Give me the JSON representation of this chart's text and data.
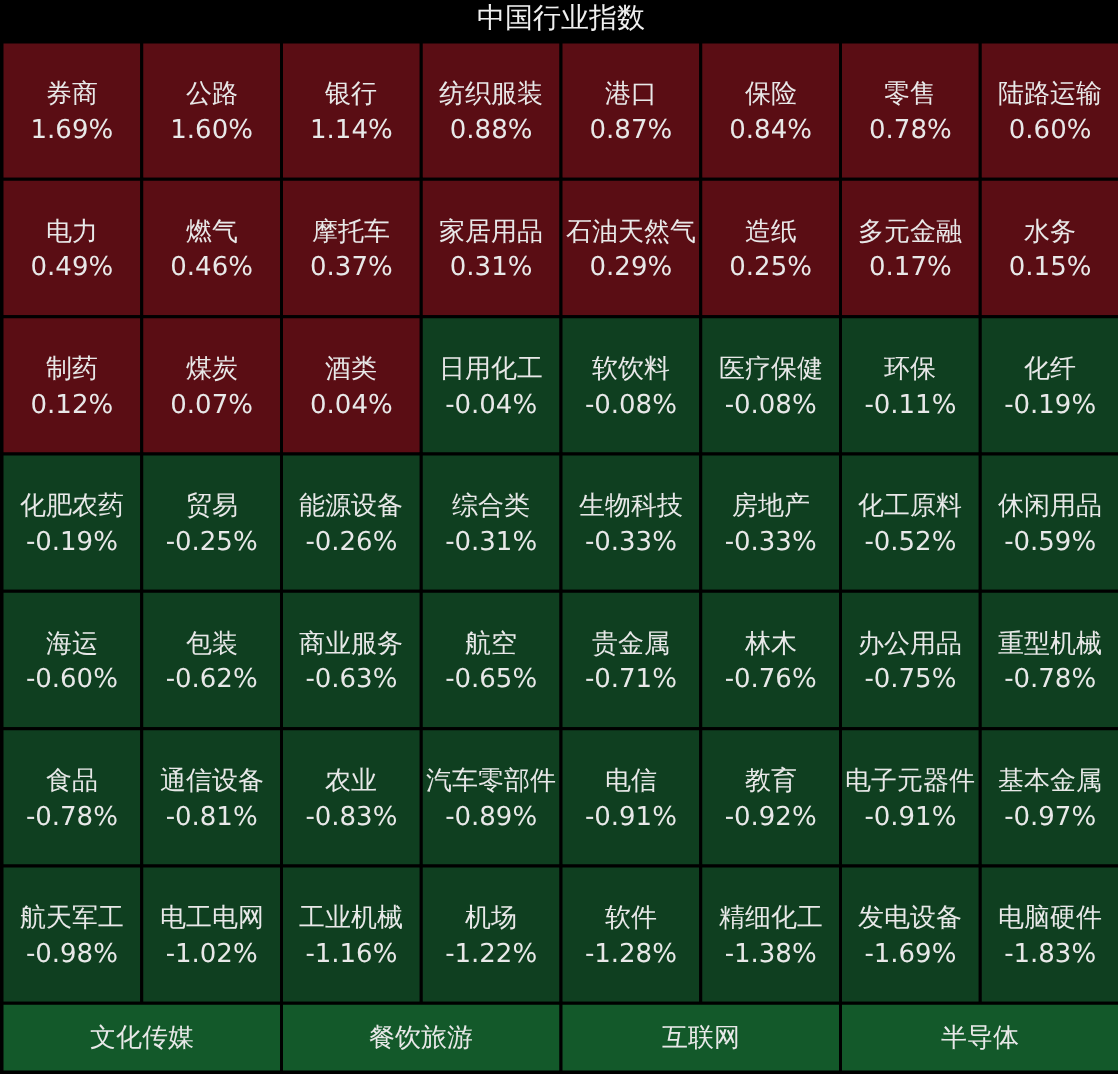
{
  "chart_data": {
    "type": "other",
    "title": "中国行业指数",
    "categories": [
      "券商",
      "公路",
      "银行",
      "纺织服装",
      "港口",
      "保险",
      "零售",
      "陆路运输",
      "电力",
      "燃气",
      "摩托车",
      "家居用品",
      "石油天然气",
      "造纸",
      "多元金融",
      "水务",
      "制药",
      "煤炭",
      "酒类",
      "日用化工",
      "软饮料",
      "医疗保健",
      "环保",
      "化纤",
      "化肥农药",
      "贸易",
      "能源设备",
      "综合类",
      "生物科技",
      "房地产",
      "化工原料",
      "休闲用品",
      "海运",
      "包装",
      "商业服务",
      "航空",
      "贵金属",
      "林木",
      "办公用品",
      "重型机械",
      "食品",
      "通信设备",
      "农业",
      "汽车零部件",
      "电信",
      "教育",
      "电子元器件",
      "基本金属",
      "航天军工",
      "电工电网",
      "工业机械",
      "机场",
      "软件",
      "精细化工",
      "发电设备",
      "电脑硬件",
      "文化传媒",
      "餐饮旅游",
      "互联网",
      "半导体"
    ],
    "values": [
      1.69,
      1.6,
      1.14,
      0.88,
      0.87,
      0.84,
      0.78,
      0.6,
      0.49,
      0.46,
      0.37,
      0.31,
      0.29,
      0.25,
      0.17,
      0.15,
      0.12,
      0.07,
      0.04,
      -0.04,
      -0.08,
      -0.08,
      -0.11,
      -0.19,
      -0.19,
      -0.25,
      -0.26,
      -0.31,
      -0.33,
      -0.33,
      -0.52,
      -0.59,
      -0.6,
      -0.62,
      -0.63,
      -0.65,
      -0.71,
      -0.76,
      -0.75,
      -0.78,
      -0.78,
      -0.81,
      -0.83,
      -0.89,
      -0.91,
      -0.92,
      -0.91,
      -0.97,
      -0.98,
      -1.02,
      -1.16,
      -1.22,
      -1.28,
      -1.38,
      -1.69,
      -1.83,
      null,
      null,
      null,
      null
    ],
    "value_labels": [
      "1.69%",
      "1.60%",
      "1.14%",
      "0.88%",
      "0.87%",
      "0.84%",
      "0.78%",
      "0.60%",
      "0.49%",
      "0.46%",
      "0.37%",
      "0.31%",
      "0.29%",
      "0.25%",
      "0.17%",
      "0.15%",
      "0.12%",
      "0.07%",
      "0.04%",
      "-0.04%",
      "-0.08%",
      "-0.08%",
      "-0.11%",
      "-0.19%",
      "-0.19%",
      "-0.25%",
      "-0.26%",
      "-0.31%",
      "-0.33%",
      "-0.33%",
      "-0.52%",
      "-0.59%",
      "-0.60%",
      "-0.62%",
      "-0.63%",
      "-0.65%",
      "-0.71%",
      "-0.76%",
      "-0.75%",
      "-0.78%",
      "-0.78%",
      "-0.81%",
      "-0.83%",
      "-0.89%",
      "-0.91%",
      "-0.92%",
      "-0.91%",
      "-0.97%",
      "-0.98%",
      "-1.02%",
      "-1.16%",
      "-1.22%",
      "-1.28%",
      "-1.38%",
      "-1.69%",
      "-1.83%",
      null,
      null,
      null,
      null
    ],
    "colors": [
      "#5a0d14",
      "#5a0d14",
      "#5a0d14",
      "#5a0d14",
      "#5a0d14",
      "#5a0d14",
      "#5a0d14",
      "#5a0d14",
      "#5a0d14",
      "#5a0d14",
      "#5a0d14",
      "#5a0d14",
      "#5a0d14",
      "#5a0d14",
      "#5a0d14",
      "#5a0d14",
      "#5a0d14",
      "#5a0d14",
      "#5a0d14",
      "#0f3f20",
      "#0f3f20",
      "#0f3f20",
      "#0f3f20",
      "#0f3f20",
      "#0f3f20",
      "#0f3f20",
      "#0f3f20",
      "#0f3f20",
      "#0f3f20",
      "#0f3f20",
      "#0f3f20",
      "#0f3f20",
      "#0f3f20",
      "#0f3f20",
      "#0f3f20",
      "#0f3f20",
      "#0f3f20",
      "#0f3f20",
      "#0f3f20",
      "#0f3f20",
      "#0f3f20",
      "#0f3f20",
      "#0f3f20",
      "#0f3f20",
      "#0f3f20",
      "#0f3f20",
      "#0f3f20",
      "#0f3f20",
      "#0f3f20",
      "#0f3f20",
      "#0f3f20",
      "#0f3f20",
      "#0f3f20",
      "#0f3f20",
      "#0f3f20",
      "#0f3f20",
      "#13592a",
      "#13592a",
      "#13592a",
      "#13592a"
    ]
  }
}
